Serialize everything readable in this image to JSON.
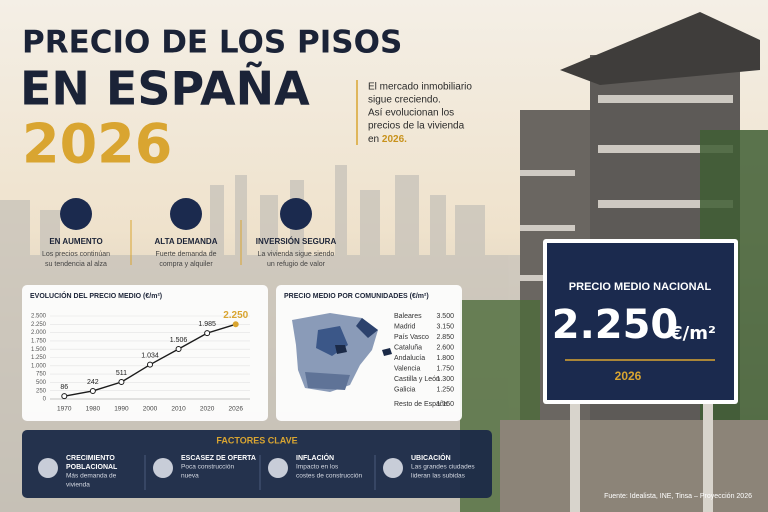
{
  "header": {
    "line1": "PRECIO DE LOS PISOS",
    "line2": "EN ESPAÑA",
    "line3": "2026"
  },
  "intro": {
    "lines": [
      "El mercado inmobiliario",
      "sigue creciendo.",
      "Así evolucionan los",
      "precios de la vivienda"
    ],
    "last": "en",
    "highlight": "2026."
  },
  "features": [
    {
      "title": "EN AUMENTO",
      "text": [
        "Los precios continúan",
        "su tendencia al alza"
      ]
    },
    {
      "title": "ALTA DEMANDA",
      "text": [
        "Fuerte demanda de",
        "compra y alquiler"
      ]
    },
    {
      "title": "INVERSIÓN SEGURA",
      "text": [
        "La vivienda sigue siendo",
        "un refugio de valor"
      ]
    }
  ],
  "chart_data": {
    "type": "line",
    "title": "EVOLUCIÓN DEL PRECIO MEDIO (€/m²)",
    "categories": [
      "1970",
      "1980",
      "1990",
      "2000",
      "2010",
      "2020",
      "2026"
    ],
    "values": [
      86,
      242,
      511,
      1034,
      1506,
      1985,
      2250
    ],
    "value_labels": [
      "86",
      "242",
      "511",
      "1.034",
      "1.506",
      "1.985",
      "2.250"
    ],
    "color": "#1b1b1b",
    "highlight_color": "#d9a531",
    "ylim": [
      0,
      2500
    ],
    "yticks": [
      0,
      250,
      500,
      750,
      {
        "value": 1000,
        "label": "1.000"
      },
      {
        "value": 1250,
        "label": "1.250"
      },
      {
        "value": 1500,
        "label": "1.500"
      },
      {
        "value": 1750,
        "label": "1.750"
      },
      {
        "value": 2000,
        "label": "2.000"
      },
      {
        "value": 2250,
        "label": "2.250"
      },
      {
        "value": 2500,
        "label": "2.500"
      }
    ],
    "grid": true
  },
  "map": {
    "title": "PRECIO MEDIO POR COMUNIDADES (€/m²)",
    "rows": [
      [
        "Baleares",
        "3.500"
      ],
      [
        "Madrid",
        "3.150"
      ],
      [
        "País Vasco",
        "2.850"
      ],
      [
        "Cataluña",
        "2.600"
      ],
      [
        "Andalucía",
        "1.800"
      ],
      [
        "Valencia",
        "1.750"
      ],
      [
        "Castilla y León",
        "1.300"
      ],
      [
        "Galicia",
        "1.250"
      ]
    ],
    "rest": [
      "Resto de España",
      "1.150"
    ]
  },
  "sign": {
    "title": "PRECIO MEDIO NACIONAL",
    "value": "2.250",
    "unit": "€/m²",
    "year": "2026"
  },
  "factors": {
    "title": "FACTORES CLAVE",
    "items": [
      {
        "title": [
          "CRECIMIENTO",
          "POBLACIONAL"
        ],
        "text": [
          "Más demanda de",
          "vivienda"
        ]
      },
      {
        "title": [
          "ESCASEZ DE OFERTA"
        ],
        "text": [
          "Poca construcción",
          "nueva"
        ]
      },
      {
        "title": [
          "INFLACIÓN"
        ],
        "text": [
          "Impacto en los",
          "costes de construcción"
        ]
      },
      {
        "title": [
          "UBICACIÓN"
        ],
        "text": [
          "Las grandes ciudades",
          "lideran las subidas"
        ]
      }
    ]
  },
  "source": "Fuente: Idealista, INE, Tinsa – Proyección 2026"
}
